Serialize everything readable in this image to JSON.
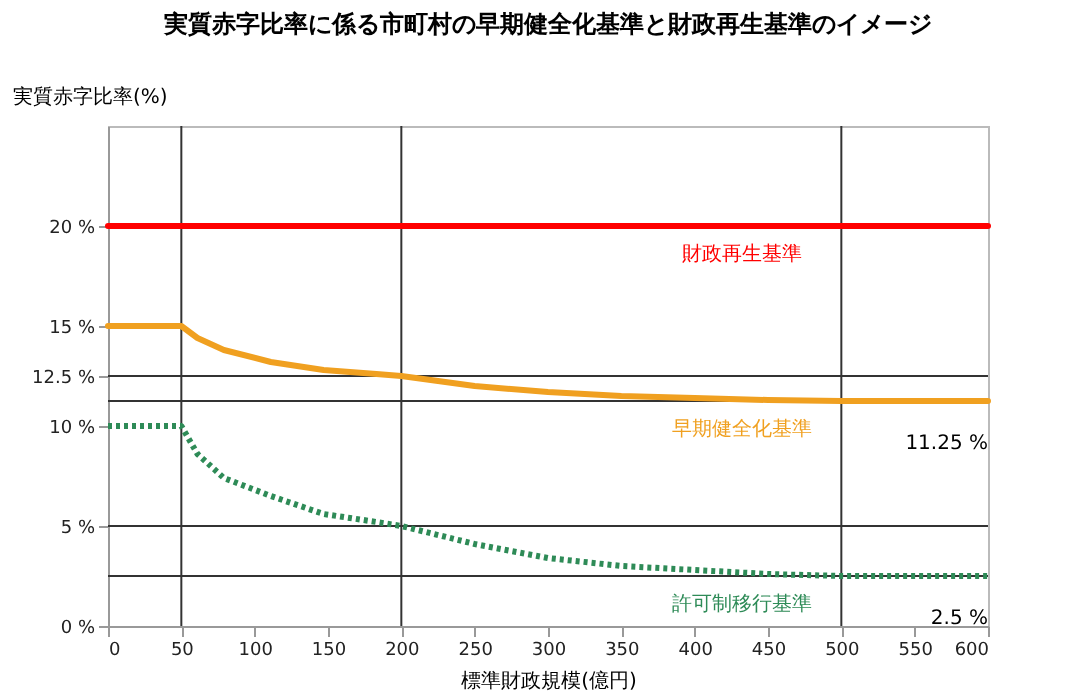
{
  "chart_data": {
    "type": "line",
    "title": "実質赤字比率に係る市町村の早期健全化基準と財政再生基準のイメージ",
    "xlabel": "標準財政規模(億円)",
    "ylabel": "実質赤字比率(%)",
    "x": [
      0,
      50,
      61,
      79,
      111,
      147,
      183,
      200,
      250,
      300,
      350,
      400,
      450,
      500,
      600
    ],
    "series": [
      {
        "name": "財政再生基準",
        "color": "#ff0000",
        "line_style": "solid",
        "values": [
          20,
          20,
          20,
          20,
          20,
          20,
          20,
          20,
          20,
          20,
          20,
          20,
          20,
          20,
          20
        ]
      },
      {
        "name": "早期健全化基準",
        "color": "#f0a020",
        "line_style": "solid",
        "values": [
          15,
          15,
          14.4,
          13.8,
          13.2,
          12.8,
          12.6,
          12.5,
          12,
          11.7,
          11.5,
          11.4,
          11.3,
          11.25,
          11.25
        ]
      },
      {
        "name": "許可制移行基準",
        "color": "#2e8b57",
        "line_style": "dotted",
        "values": [
          10,
          10,
          8.6,
          7.4,
          6.5,
          5.6,
          5.2,
          5,
          4.1,
          3.4,
          3,
          2.8,
          2.6,
          2.5,
          2.5
        ]
      }
    ],
    "xlim": [
      0,
      600
    ],
    "xticks": [
      0,
      50,
      100,
      150,
      200,
      250,
      300,
      350,
      400,
      450,
      500,
      550,
      600
    ],
    "ylim": [
      0,
      25
    ],
    "yticks": [
      {
        "value": 0,
        "label": "0 %"
      },
      {
        "value": 5,
        "label": "5 %"
      },
      {
        "value": 10,
        "label": "10 %"
      },
      {
        "value": 12.5,
        "label": "12.5 %"
      },
      {
        "value": 15,
        "label": "15 %"
      },
      {
        "value": 20,
        "label": "20 %"
      }
    ],
    "ref_lines": [
      {
        "axis": "y",
        "value": 12.5,
        "color": "#333333"
      },
      {
        "axis": "y",
        "value": 11.25,
        "color": "#333333"
      },
      {
        "axis": "y",
        "value": 5,
        "color": "#333333"
      },
      {
        "axis": "y",
        "value": 2.5,
        "color": "#333333"
      },
      {
        "axis": "x",
        "value": 50,
        "color": "#333333"
      },
      {
        "axis": "x",
        "value": 200,
        "color": "#333333"
      },
      {
        "axis": "x",
        "value": 500,
        "color": "#333333"
      }
    ],
    "annotations": [
      {
        "text": "11.25 %",
        "x": 600,
        "y": 11.25
      },
      {
        "text": "2.5 %",
        "x": 600,
        "y": 2.5
      }
    ],
    "grid": false,
    "legend": false,
    "marker": "none"
  }
}
